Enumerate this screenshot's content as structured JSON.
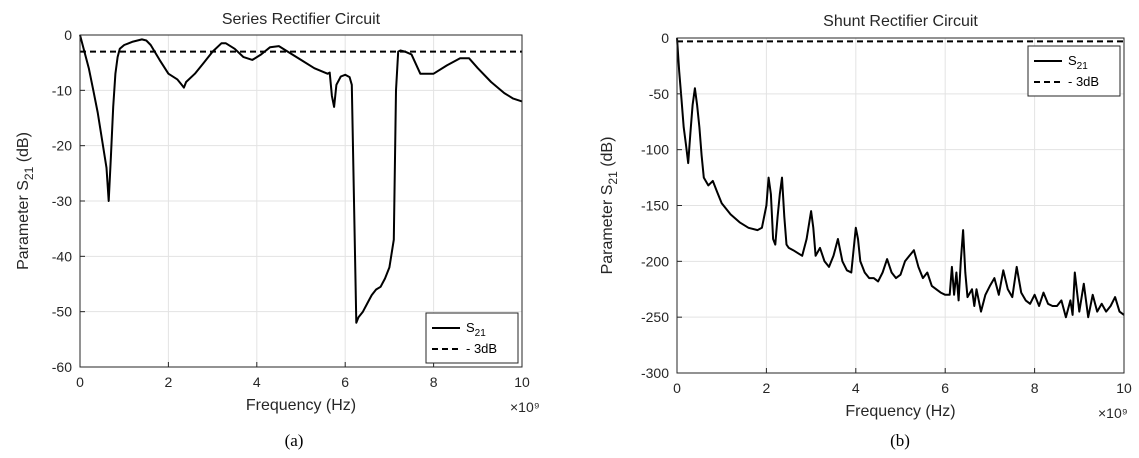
{
  "chart_data": [
    {
      "type": "line",
      "panel_label": "(a)",
      "title": "Series Rectifier Circuit",
      "xlabel": "Frequency (Hz)",
      "x_exponent": "×10⁹",
      "ylabel_main": "Parameter S",
      "ylabel_sub": "21",
      "ylabel_unit": " (dB)",
      "xlim": [
        0,
        10
      ],
      "ylim": [
        -60,
        0
      ],
      "xticks": [
        0,
        2,
        4,
        6,
        8,
        10
      ],
      "yticks": [
        0,
        -10,
        -20,
        -30,
        -40,
        -50,
        -60
      ],
      "xtick_labels": [
        "0",
        "2",
        "4",
        "6",
        "8",
        "10"
      ],
      "ytick_labels": [
        "0",
        "-10",
        "-20",
        "-30",
        "-40",
        "-50",
        "-60"
      ],
      "grid": true,
      "legend_position": "bottom-right",
      "legend": [
        {
          "label_main": "S",
          "label_sub": "21",
          "style": "solid"
        },
        {
          "label_main": "- 3dB",
          "label_sub": "",
          "style": "dashed"
        }
      ],
      "series": [
        {
          "label": "S21",
          "style": "solid",
          "x": [
            0,
            0.1,
            0.2,
            0.3,
            0.4,
            0.5,
            0.6,
            0.65,
            0.7,
            0.75,
            0.8,
            0.85,
            0.9,
            1.0,
            1.1,
            1.2,
            1.3,
            1.4,
            1.5,
            1.6,
            1.8,
            2.0,
            2.2,
            2.3,
            2.35,
            2.4,
            2.6,
            2.8,
            3.0,
            3.2,
            3.3,
            3.5,
            3.7,
            3.9,
            4.1,
            4.3,
            4.5,
            4.7,
            5.0,
            5.3,
            5.6,
            5.65,
            5.7,
            5.75,
            5.8,
            5.9,
            6.0,
            6.1,
            6.15,
            6.2,
            6.25,
            6.3,
            6.4,
            6.5,
            6.6,
            6.7,
            6.8,
            6.9,
            7.0,
            7.1,
            7.15,
            7.2,
            7.25,
            7.35,
            7.5,
            7.7,
            8.0,
            8.3,
            8.6,
            8.8,
            9.0,
            9.3,
            9.6,
            9.8,
            10.0
          ],
          "y": [
            0,
            -3,
            -6,
            -10,
            -14,
            -19,
            -24,
            -30,
            -22,
            -13,
            -7,
            -4,
            -2.5,
            -1.8,
            -1.5,
            -1.2,
            -1.0,
            -0.8,
            -1.0,
            -1.8,
            -4.5,
            -7,
            -8,
            -9,
            -9.5,
            -8.5,
            -7,
            -5,
            -3,
            -1.5,
            -1.5,
            -2.5,
            -4,
            -4.5,
            -3.5,
            -2.2,
            -2,
            -3,
            -4.5,
            -6,
            -7,
            -6.8,
            -11,
            -13,
            -9,
            -7.5,
            -7.2,
            -7.6,
            -9,
            -30,
            -52,
            -51,
            -50,
            -48.5,
            -47,
            -46,
            -45.5,
            -44,
            -42,
            -37,
            -10,
            -3,
            -2.8,
            -3,
            -3.5,
            -7,
            -7,
            -5.5,
            -4.2,
            -4.2,
            -6,
            -8.5,
            -10.5,
            -11.5,
            -12
          ],
          "color": "#000000"
        },
        {
          "label": "- 3dB",
          "style": "dashed",
          "x": [
            0,
            10
          ],
          "y": [
            -3,
            -3
          ],
          "color": "#000000"
        }
      ]
    },
    {
      "type": "line",
      "panel_label": "(b)",
      "title": "Shunt Rectifier Circuit",
      "xlabel": "Frequency (Hz)",
      "x_exponent": "×10⁹",
      "ylabel_main": "Parameter S",
      "ylabel_sub": "21",
      "ylabel_unit": " (dB)",
      "xlim": [
        0,
        10
      ],
      "ylim": [
        -300,
        0
      ],
      "xticks": [
        0,
        2,
        4,
        6,
        8,
        10
      ],
      "yticks": [
        0,
        -50,
        -100,
        -150,
        -200,
        -250,
        -300
      ],
      "xtick_labels": [
        "0",
        "2",
        "4",
        "6",
        "8",
        "10"
      ],
      "ytick_labels": [
        "0",
        "-50",
        "-100",
        "-150",
        "-200",
        "-250",
        "-300"
      ],
      "grid": true,
      "legend_position": "top-right",
      "legend": [
        {
          "label_main": "S",
          "label_sub": "21",
          "style": "solid"
        },
        {
          "label_main": "- 3dB",
          "label_sub": "",
          "style": "dashed"
        }
      ],
      "series": [
        {
          "label": "S21",
          "style": "solid",
          "x": [
            0,
            0.05,
            0.1,
            0.15,
            0.2,
            0.25,
            0.3,
            0.35,
            0.4,
            0.45,
            0.5,
            0.55,
            0.6,
            0.7,
            0.8,
            0.9,
            1.0,
            1.2,
            1.4,
            1.6,
            1.8,
            1.9,
            2.0,
            2.05,
            2.1,
            2.15,
            2.2,
            2.25,
            2.3,
            2.35,
            2.4,
            2.45,
            2.5,
            2.6,
            2.8,
            2.9,
            3.0,
            3.05,
            3.1,
            3.2,
            3.3,
            3.4,
            3.5,
            3.6,
            3.7,
            3.8,
            3.9,
            4.0,
            4.05,
            4.1,
            4.2,
            4.3,
            4.4,
            4.5,
            4.6,
            4.7,
            4.8,
            4.9,
            5.0,
            5.1,
            5.2,
            5.3,
            5.4,
            5.5,
            5.6,
            5.7,
            5.8,
            5.9,
            6.0,
            6.1,
            6.15,
            6.2,
            6.25,
            6.3,
            6.35,
            6.4,
            6.45,
            6.5,
            6.6,
            6.65,
            6.7,
            6.8,
            6.9,
            7.0,
            7.1,
            7.2,
            7.3,
            7.4,
            7.5,
            7.6,
            7.7,
            7.8,
            7.9,
            8.0,
            8.1,
            8.2,
            8.3,
            8.4,
            8.5,
            8.6,
            8.7,
            8.8,
            8.85,
            8.9,
            9.0,
            9.1,
            9.2,
            9.3,
            9.4,
            9.5,
            9.6,
            9.7,
            9.8,
            9.9,
            10.0
          ],
          "y": [
            0,
            -30,
            -55,
            -80,
            -95,
            -112,
            -85,
            -60,
            -45,
            -60,
            -80,
            -105,
            -125,
            -132,
            -128,
            -138,
            -148,
            -158,
            -165,
            -170,
            -172,
            -170,
            -150,
            -125,
            -140,
            -180,
            -185,
            -160,
            -140,
            -125,
            -160,
            -185,
            -188,
            -190,
            -195,
            -180,
            -155,
            -170,
            -195,
            -188,
            -200,
            -205,
            -195,
            -180,
            -200,
            -208,
            -210,
            -170,
            -180,
            -200,
            -210,
            -215,
            -215,
            -218,
            -210,
            -198,
            -210,
            -215,
            -212,
            -200,
            -195,
            -190,
            -205,
            -215,
            -210,
            -222,
            -225,
            -228,
            -230,
            -230,
            -205,
            -230,
            -210,
            -235,
            -200,
            -172,
            -210,
            -232,
            -225,
            -240,
            -225,
            -245,
            -230,
            -222,
            -215,
            -230,
            -208,
            -225,
            -232,
            -205,
            -228,
            -235,
            -238,
            -230,
            -240,
            -228,
            -238,
            -240,
            -240,
            -235,
            -250,
            -235,
            -248,
            -210,
            -245,
            -220,
            -250,
            -230,
            -245,
            -238,
            -245,
            -240,
            -232,
            -245,
            -248
          ],
          "color": "#000000"
        },
        {
          "label": "- 3dB",
          "style": "dashed",
          "x": [
            0,
            10
          ],
          "y": [
            -3,
            -3
          ],
          "color": "#000000"
        }
      ]
    }
  ]
}
